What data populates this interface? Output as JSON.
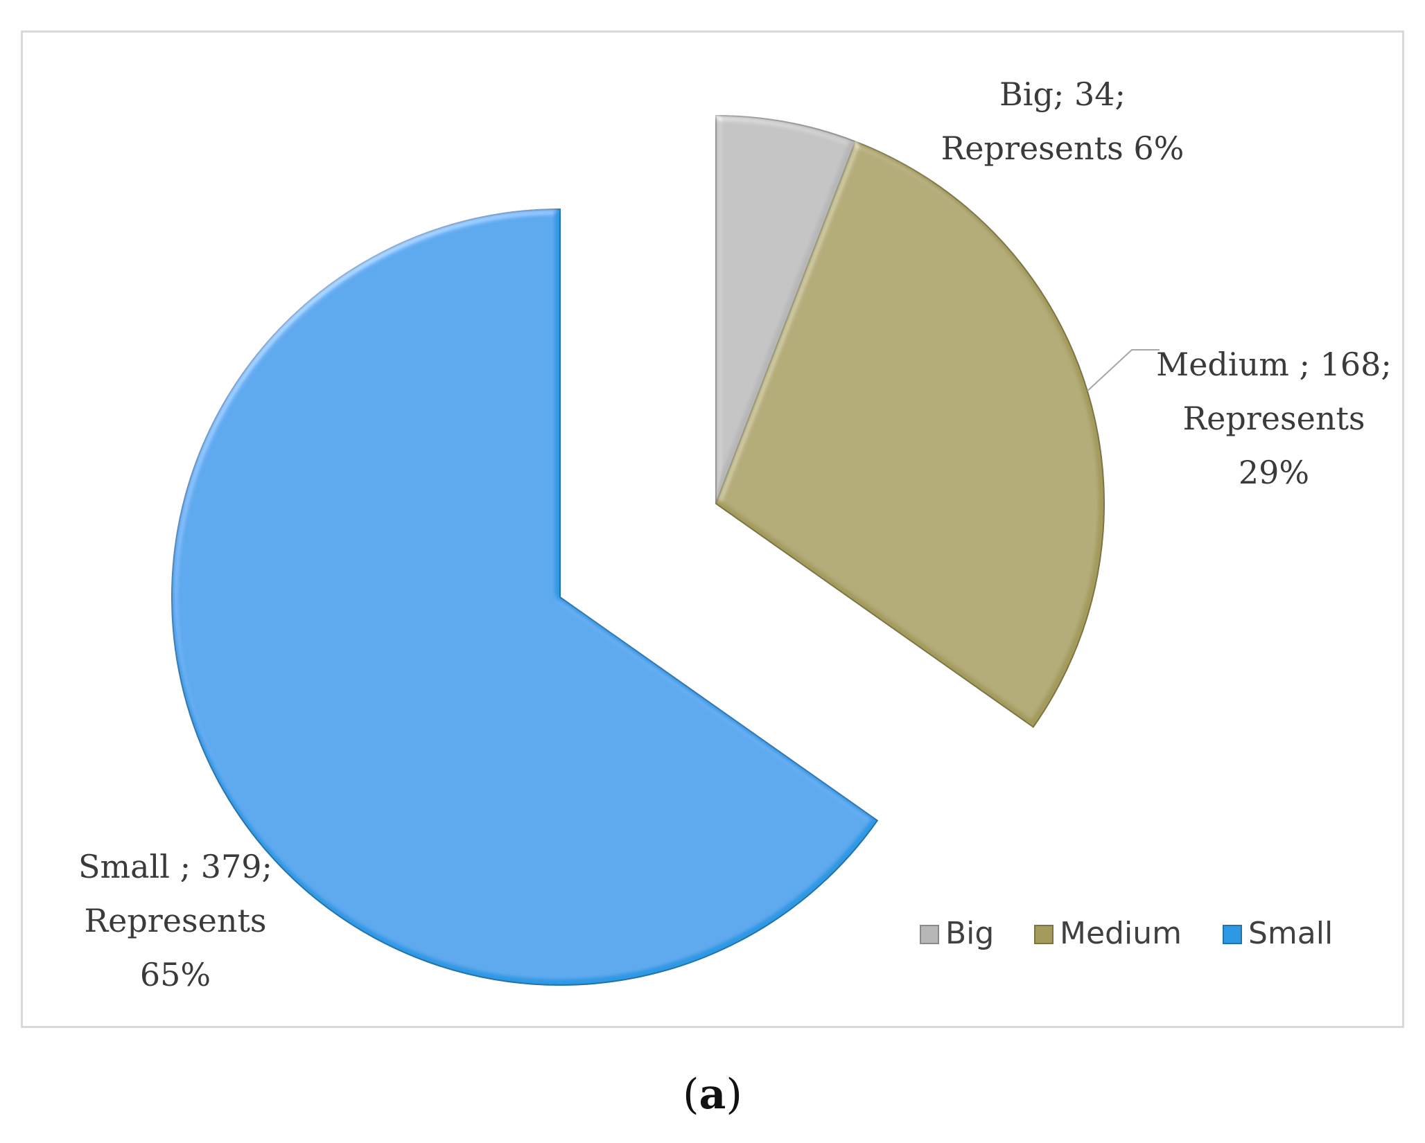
{
  "chart_data": {
    "type": "pie",
    "style": "3d-bevel exploded",
    "slices": [
      {
        "name": "Big",
        "value": 34,
        "percent": 6,
        "color": "#b7b7b7",
        "label_lines": [
          "Big; 34;",
          "Represents 6%"
        ]
      },
      {
        "name": "Medium",
        "value": 168,
        "percent": 29,
        "color": "#a39a5b",
        "label_lines": [
          "Medium ; 168;",
          "Represents",
          "29%"
        ]
      },
      {
        "name": "Small",
        "value": 379,
        "percent": 65,
        "color": "#2e98e4",
        "label_lines": [
          "Small ; 379;",
          "Represents",
          "65%"
        ]
      }
    ],
    "legend": {
      "position": "bottom-right",
      "entries": [
        "Big",
        "Medium",
        "Small"
      ]
    }
  },
  "caption": {
    "open": "(",
    "letter": "a",
    "close": ")"
  }
}
